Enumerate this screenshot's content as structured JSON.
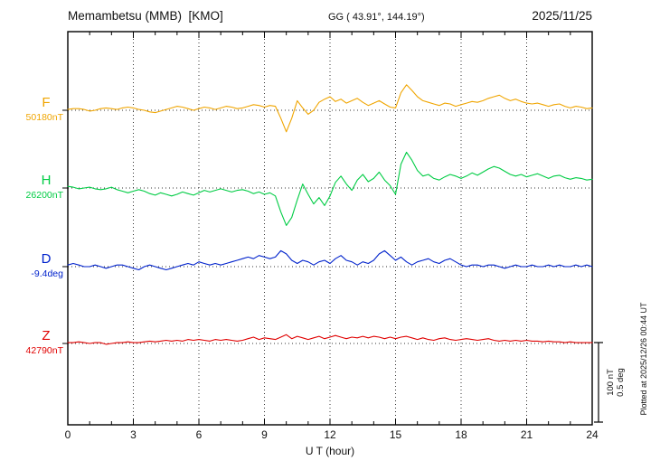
{
  "header": {
    "station": "Memambetsu (MMB)  [KMO]",
    "gg": "GG ( 43.91°, 144.19°)",
    "date": "2025/11/25"
  },
  "axis": {
    "xlabel": "U T (hour)",
    "tick_labels": [
      "0",
      "3",
      "6",
      "9",
      "12",
      "15",
      "18",
      "21",
      "24"
    ]
  },
  "scale_bar": {
    "label": "100 nT\n0.5 deg"
  },
  "plotted_at": "Plotted at 2025/12/26 00:44 UT",
  "chart_data": {
    "type": "line",
    "title": "Memambetsu (MMB) [KMO] magnetogram 2025/11/25",
    "xlabel": "U T (hour)",
    "xlim": [
      0,
      24
    ],
    "x_step_hours": 0.25,
    "grid": "vertical dotted every 3 h, dotted baseline per trace",
    "scale": "100 nT and 0.5 deg correspond to the same bar length",
    "series": [
      {
        "key": "F",
        "label": "F",
        "value_label": "50180nT",
        "unit": "nT",
        "color": "#f0a500",
        "offsets": [
          1,
          2,
          2,
          1,
          -1,
          0,
          2,
          3,
          2,
          1,
          3,
          4,
          3,
          1,
          0,
          -2,
          -3,
          -1,
          1,
          3,
          5,
          4,
          2,
          0,
          2,
          4,
          3,
          1,
          3,
          5,
          4,
          2,
          3,
          5,
          7,
          6,
          4,
          6,
          5,
          -10,
          -27,
          -10,
          12,
          3,
          -5,
          0,
          10,
          14,
          17,
          11,
          14,
          9,
          12,
          15,
          10,
          6,
          9,
          12,
          8,
          4,
          3,
          22,
          32,
          25,
          17,
          12,
          10,
          8,
          6,
          9,
          8,
          5,
          7,
          9,
          11,
          10,
          12,
          15,
          17,
          19,
          15,
          12,
          14,
          11,
          9,
          8,
          9,
          7,
          5,
          7,
          8,
          5,
          3,
          5,
          4,
          2,
          3
        ]
      },
      {
        "key": "H",
        "label": "H",
        "value_label": "26200nT",
        "unit": "nT",
        "color": "#00cc44",
        "offsets": [
          2,
          1,
          -1,
          0,
          1,
          -1,
          -2,
          -1,
          1,
          -2,
          -4,
          -6,
          -4,
          -2,
          -4,
          -7,
          -9,
          -6,
          -8,
          -10,
          -8,
          -5,
          -7,
          -9,
          -6,
          -3,
          -5,
          -3,
          -1,
          -3,
          -5,
          -3,
          -2,
          -4,
          -7,
          -5,
          -8,
          -6,
          -10,
          -30,
          -47,
          -37,
          -15,
          5,
          -8,
          -20,
          -12,
          -22,
          -10,
          7,
          15,
          5,
          -3,
          10,
          17,
          8,
          12,
          20,
          10,
          3,
          -8,
          30,
          45,
          35,
          22,
          15,
          17,
          12,
          10,
          14,
          17,
          15,
          12,
          15,
          19,
          16,
          20,
          24,
          27,
          25,
          21,
          17,
          15,
          17,
          14,
          16,
          18,
          15,
          12,
          15,
          16,
          13,
          11,
          13,
          12,
          10,
          11
        ]
      },
      {
        "key": "D",
        "label": "D",
        "value_label": "-9.4deg",
        "unit": "deg",
        "color": "#0022cc",
        "offsets": [
          0.01,
          0.02,
          0.01,
          0,
          0,
          0.01,
          0,
          -0.01,
          0,
          0.01,
          0.01,
          0,
          -0.01,
          -0.02,
          0,
          0.01,
          0,
          -0.01,
          -0.02,
          -0.01,
          0,
          0.01,
          0.02,
          0.01,
          0.03,
          0.02,
          0.01,
          0.02,
          0.01,
          0.02,
          0.03,
          0.04,
          0.05,
          0.06,
          0.05,
          0.07,
          0.06,
          0.05,
          0.06,
          0.1,
          0.08,
          0.04,
          0.02,
          0.04,
          0.03,
          0.01,
          0.03,
          0.04,
          0.02,
          0.05,
          0.07,
          0.04,
          0.03,
          0.01,
          0.03,
          0.02,
          0.04,
          0.08,
          0.1,
          0.07,
          0.04,
          0.06,
          0.03,
          0.01,
          0.03,
          0.04,
          0.05,
          0.03,
          0.02,
          0.04,
          0.05,
          0.03,
          0.01,
          0,
          0.01,
          0.01,
          0,
          0.01,
          0.01,
          0,
          -0.01,
          0,
          0.01,
          0,
          0,
          0.01,
          0,
          0,
          0.01,
          0,
          0.01,
          0,
          0,
          0.01,
          0,
          0.01,
          0
        ]
      },
      {
        "key": "Z",
        "label": "Z",
        "value_label": "42790nT",
        "unit": "nT",
        "color": "#e00000",
        "offsets": [
          1,
          1,
          2,
          1,
          0,
          1,
          1,
          -1,
          0,
          1,
          1,
          2,
          1,
          1,
          2,
          3,
          2,
          3,
          4,
          3,
          4,
          3,
          5,
          4,
          5,
          4,
          3,
          5,
          4,
          5,
          4,
          3,
          4,
          6,
          8,
          5,
          7,
          6,
          5,
          8,
          11,
          6,
          9,
          7,
          5,
          7,
          9,
          6,
          8,
          10,
          8,
          6,
          8,
          7,
          9,
          7,
          9,
          8,
          6,
          8,
          6,
          8,
          9,
          7,
          5,
          7,
          5,
          4,
          6,
          7,
          5,
          4,
          5,
          6,
          5,
          4,
          5,
          6,
          4,
          3,
          4,
          3,
          4,
          3,
          4,
          3,
          3,
          2,
          3,
          2,
          2,
          1,
          2,
          1,
          1,
          1,
          1
        ]
      }
    ]
  }
}
